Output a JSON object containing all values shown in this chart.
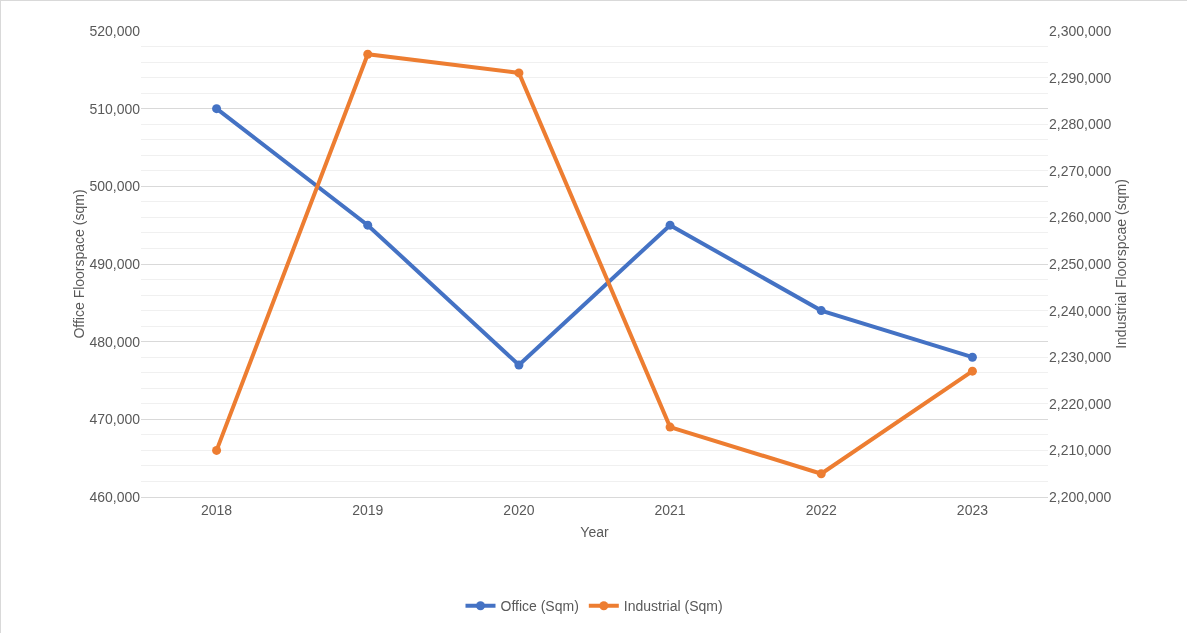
{
  "chart_data": {
    "type": "line",
    "xlabel": "Year",
    "ylabel": "Office Floorspace (sqm)",
    "y2label": "Industrial Floorspcae (sqm)",
    "categories": [
      "2018",
      "2019",
      "2020",
      "2021",
      "2022",
      "2023"
    ],
    "series": [
      {
        "name": "Office (Sqm)",
        "color": "#4472c4",
        "values": [
          510000,
          495000,
          477000,
          495000,
          484000,
          478000
        ]
      },
      {
        "name": "Industrial (Sqm)",
        "color": "#ed7d31",
        "axis": "y2",
        "values": [
          2210000,
          2295000,
          2291000,
          2215000,
          2205000,
          2227000
        ]
      }
    ],
    "ylim": [
      460000,
      520000
    ],
    "yticks": [
      {
        "value": 460000,
        "label": "460,000"
      },
      {
        "value": 470000,
        "label": "470,000"
      },
      {
        "value": 480000,
        "label": "480,000"
      },
      {
        "value": 490000,
        "label": "490,000"
      },
      {
        "value": 500000,
        "label": "500,000"
      },
      {
        "value": 510000,
        "label": "510,000"
      },
      {
        "value": 520000,
        "label": "520,000"
      }
    ],
    "y2lim": [
      2200000,
      2300000
    ],
    "y2ticks": [
      {
        "value": 2200000,
        "label": "2,200,000"
      },
      {
        "value": 2210000,
        "label": "2,210,000"
      },
      {
        "value": 2220000,
        "label": "2,220,000"
      },
      {
        "value": 2230000,
        "label": "2,230,000"
      },
      {
        "value": 2240000,
        "label": "2,240,000"
      },
      {
        "value": 2250000,
        "label": "2,250,000"
      },
      {
        "value": 2260000,
        "label": "2,260,000"
      },
      {
        "value": 2270000,
        "label": "2,270,000"
      },
      {
        "value": 2280000,
        "label": "2,280,000"
      },
      {
        "value": 2290000,
        "label": "2,290,000"
      },
      {
        "value": 2300000,
        "label": "2,300,000"
      }
    ],
    "grid": "y",
    "legend": "bottom",
    "marker": "circle",
    "line_style": "solid"
  }
}
